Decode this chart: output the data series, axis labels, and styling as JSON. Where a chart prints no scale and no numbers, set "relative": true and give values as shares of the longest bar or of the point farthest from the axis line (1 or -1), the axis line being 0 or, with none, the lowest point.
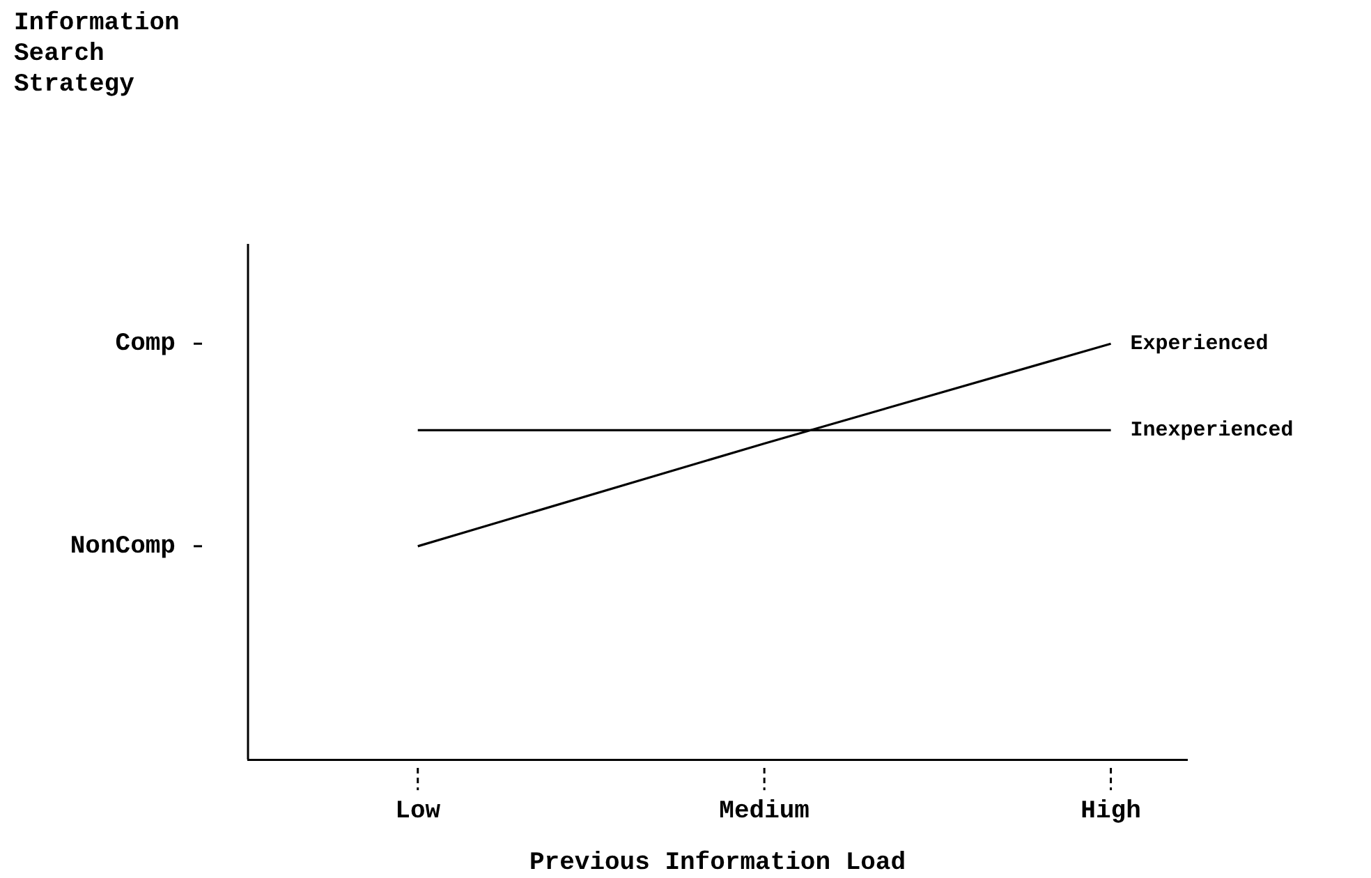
{
  "chart_data": {
    "type": "line",
    "xlabel": "Previous Information Load",
    "categories": [
      "Low",
      "Medium",
      "High"
    ],
    "relative": true,
    "annotations": [
      "Information Search Strategy",
      "Comp",
      "NonComp"
    ],
    "series": [
      {
        "name": "Experienced",
        "color": "#000000",
        "values": [
          0.513,
          0.76,
          1
        ]
      },
      {
        "name": "Inexperienced",
        "color": "#000000",
        "values": [
          0.792,
          0.792,
          0.792
        ]
      }
    ],
    "grid": false,
    "legend": false,
    "marker": "none",
    "line_style": "solid"
  }
}
